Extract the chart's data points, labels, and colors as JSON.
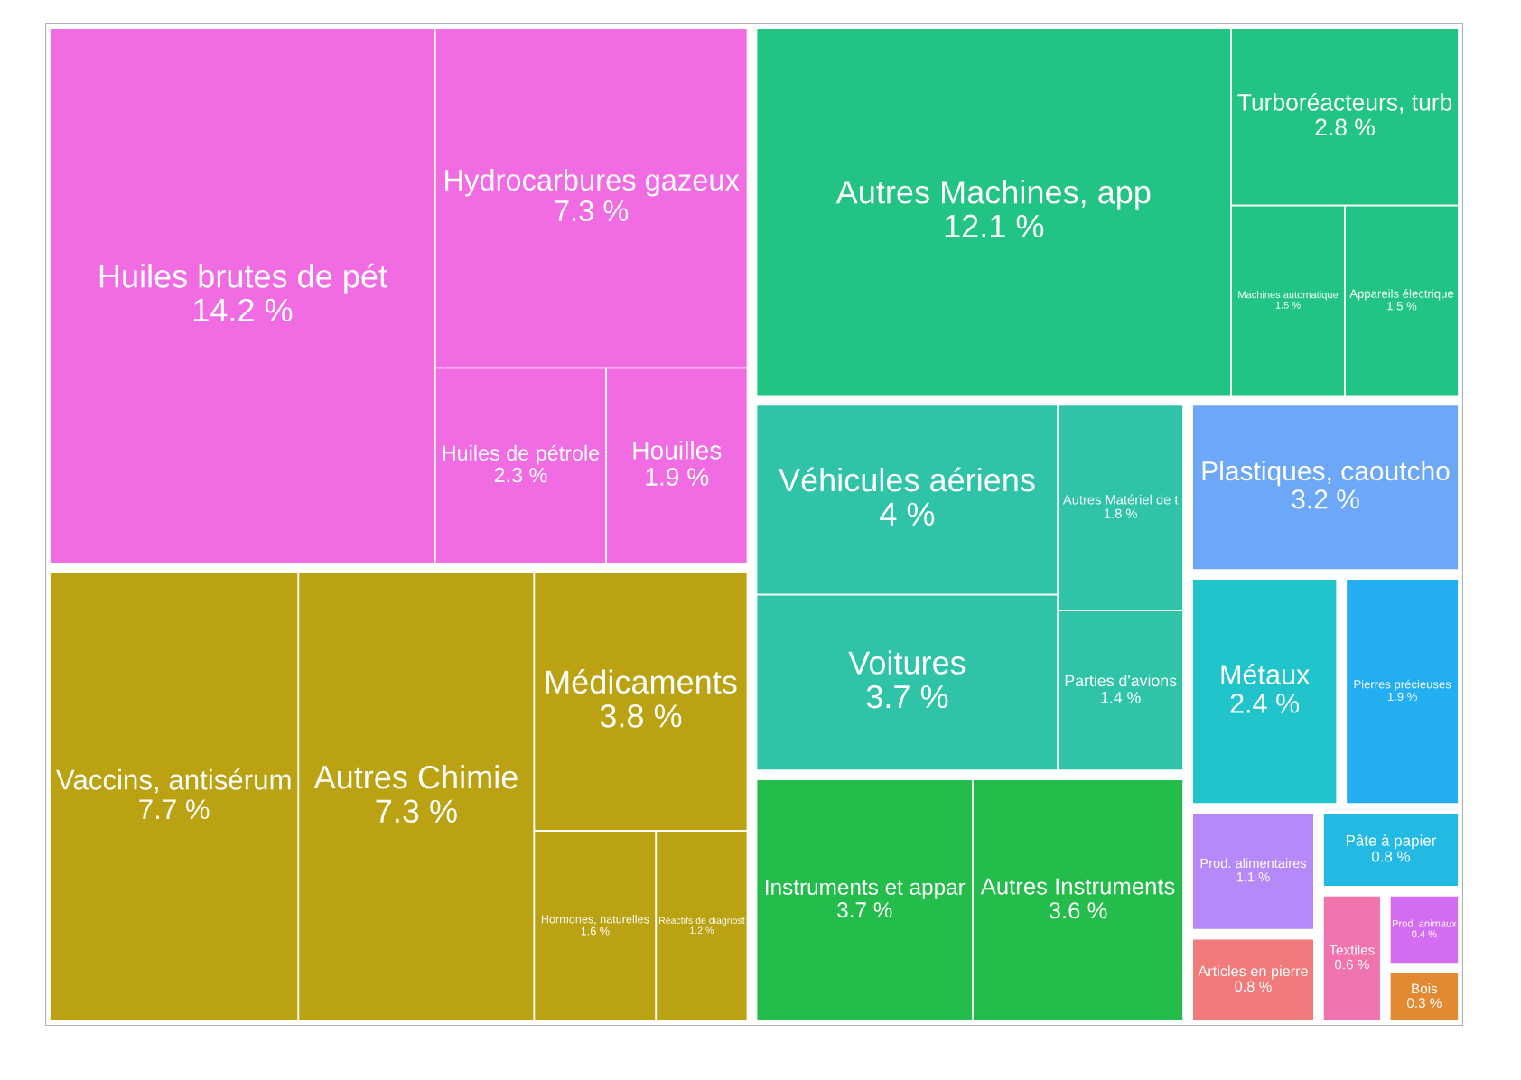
{
  "chart_data": {
    "type": "other",
    "categories": [
      "Huiles brutes de pét",
      "Hydrocarbures gazeux",
      "Huiles de pétrole",
      "Houilles",
      "Vaccins, antisérum",
      "Autres Chimie",
      "Médicaments",
      "Hormones, naturelles",
      "Réactifs de diagnost",
      "Autres Machines, app",
      "Turboréacteurs, turb",
      "Machines automatique",
      "Appareils électrique",
      "Véhicules aériens",
      "Voitures",
      "Autres Matériel de t",
      "Parties d'avions",
      "Instruments et appar",
      "Autres Instruments",
      "Plastiques, caoutcho",
      "Métaux",
      "Pierres précieuses",
      "Prod. alimentaires",
      "Articles en pierre",
      "Pâte à papier",
      "Textiles",
      "Prod. animaux",
      "Bois"
    ],
    "values": [
      14.2,
      7.3,
      2.3,
      1.9,
      7.7,
      7.3,
      3.8,
      1.6,
      1.2,
      12.1,
      2.8,
      1.5,
      1.5,
      4,
      3.7,
      1.8,
      1.4,
      3.7,
      3.6,
      3.2,
      2.4,
      1.9,
      1.1,
      0.8,
      0.8,
      0.6,
      0.4,
      0.3
    ],
    "value_labels": [
      "14.2 %",
      "7.3 %",
      "2.3 %",
      "1.9 %",
      "7.7 %",
      "7.3 %",
      "3.8 %",
      "1.6 %",
      "1.2 %",
      "12.1 %",
      "2.8 %",
      "1.5 %",
      "1.5 %",
      "4 %",
      "3.7 %",
      "1.8 %",
      "1.4 %",
      "3.7 %",
      "3.6 %",
      "3.2 %",
      "2.4 %",
      "1.9 %",
      "1.1 %",
      "0.8 %",
      "0.8 %",
      "0.6 %",
      "0.4 %",
      "0.3 %"
    ],
    "colors": [
      "#f060e0",
      "#f060e0",
      "#f060e0",
      "#f060e0",
      "#b59b00",
      "#b59b00",
      "#b59b00",
      "#b59b00",
      "#b59b00",
      "#10c07a",
      "#10c07a",
      "#10c07a",
      "#10c07a",
      "#1ec0a0",
      "#1ec0a0",
      "#1ec0a0",
      "#1ec0a0",
      "#12b83c",
      "#12b83c",
      "#60a0f8",
      "#10c0c8",
      "#10a8f0",
      "#b080f8",
      "#f07070",
      "#10b4e0",
      "#f068a8",
      "#d060f0",
      "#e08020"
    ]
  }
}
